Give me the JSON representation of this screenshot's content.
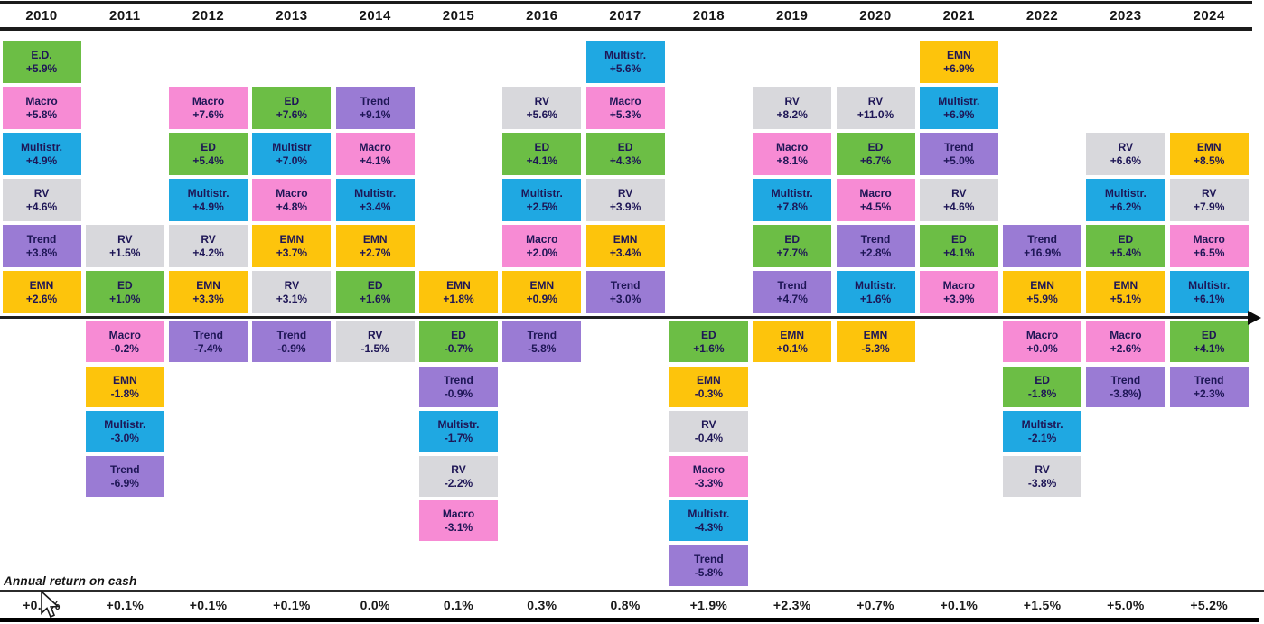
{
  "footer": {
    "cash_label": "Annual return on cash"
  },
  "colors": {
    "ED": "#6cbe45",
    "Macro": "#f78bd4",
    "Multistr": "#1fa8e2",
    "RV": "#d8d8dc",
    "Trend": "#9a7bd4",
    "EMN": "#fdc40c",
    "box_text": "#1e1656",
    "axis": "#1f1f1f"
  },
  "chart_data": {
    "type": "table",
    "title": "",
    "xlabel": "",
    "ylabel": "",
    "legend": "none",
    "years": [
      "2010",
      "2011",
      "2012",
      "2013",
      "2014",
      "2015",
      "2016",
      "2017",
      "2018",
      "2019",
      "2020",
      "2021",
      "2022",
      "2023",
      "2024"
    ],
    "cash_returns": [
      "+0.1%",
      "+0.1%",
      "+0.1%",
      "+0.1%",
      "0.0%",
      "0.1%",
      "0.3%",
      "0.8%",
      "+1.9%",
      "+2.3%",
      "+0.7%",
      "+0.1%",
      "+1.5%",
      "+5.0%",
      "+5.2%"
    ],
    "columns": [
      {
        "year": "2010",
        "cash": "+0.1%",
        "boxes": [
          {
            "row": 1,
            "label": "E.D.",
            "value": "+5.9%",
            "strategy": "ED"
          },
          {
            "row": 2,
            "label": "Macro",
            "value": "+5.8%",
            "strategy": "Macro"
          },
          {
            "row": 3,
            "label": "Multistr.",
            "value": "+4.9%",
            "strategy": "Multistr"
          },
          {
            "row": 4,
            "label": "RV",
            "value": "+4.6%",
            "strategy": "RV"
          },
          {
            "row": 5,
            "label": "Trend",
            "value": "+3.8%",
            "strategy": "Trend"
          },
          {
            "row": 6,
            "label": "EMN",
            "value": "+2.6%",
            "strategy": "EMN"
          }
        ]
      },
      {
        "year": "2011",
        "cash": "+0.1%",
        "boxes": [
          {
            "row": 5,
            "label": "RV",
            "value": "+1.5%",
            "strategy": "RV"
          },
          {
            "row": 6,
            "label": "ED",
            "value": "+1.0%",
            "strategy": "ED"
          },
          {
            "row": 7,
            "label": "Macro",
            "value": "-0.2%",
            "strategy": "Macro"
          },
          {
            "row": 8,
            "label": "EMN",
            "value": "-1.8%",
            "strategy": "EMN"
          },
          {
            "row": 9,
            "label": "Multistr.",
            "value": "-3.0%",
            "strategy": "Multistr"
          },
          {
            "row": 10,
            "label": "Trend",
            "value": "-6.9%",
            "strategy": "Trend"
          }
        ]
      },
      {
        "year": "2012",
        "cash": "+0.1%",
        "boxes": [
          {
            "row": 2,
            "label": "Macro",
            "value": "+7.6%",
            "strategy": "Macro"
          },
          {
            "row": 3,
            "label": "ED",
            "value": "+5.4%",
            "strategy": "ED"
          },
          {
            "row": 4,
            "label": "Multistr.",
            "value": "+4.9%",
            "strategy": "Multistr"
          },
          {
            "row": 5,
            "label": "RV",
            "value": "+4.2%",
            "strategy": "RV"
          },
          {
            "row": 6,
            "label": "EMN",
            "value": "+3.3%",
            "strategy": "EMN"
          },
          {
            "row": 7,
            "label": "Trend",
            "value": "-7.4%",
            "strategy": "Trend"
          }
        ]
      },
      {
        "year": "2013",
        "cash": "+0.1%",
        "boxes": [
          {
            "row": 2,
            "label": "ED",
            "value": "+7.6%",
            "strategy": "ED"
          },
          {
            "row": 3,
            "label": "Multistr",
            "value": "+7.0%",
            "strategy": "Multistr"
          },
          {
            "row": 4,
            "label": "Macro",
            "value": "+4.8%",
            "strategy": "Macro"
          },
          {
            "row": 5,
            "label": "EMN",
            "value": "+3.7%",
            "strategy": "EMN"
          },
          {
            "row": 6,
            "label": "RV",
            "value": "+3.1%",
            "strategy": "RV"
          },
          {
            "row": 7,
            "label": "Trend",
            "value": "-0.9%",
            "strategy": "Trend"
          }
        ]
      },
      {
        "year": "2014",
        "cash": "0.0%",
        "boxes": [
          {
            "row": 2,
            "label": "Trend",
            "value": "+9.1%",
            "strategy": "Trend"
          },
          {
            "row": 3,
            "label": "Macro",
            "value": "+4.1%",
            "strategy": "Macro"
          },
          {
            "row": 4,
            "label": "Multistr.",
            "value": "+3.4%",
            "strategy": "Multistr"
          },
          {
            "row": 5,
            "label": "EMN",
            "value": "+2.7%",
            "strategy": "EMN"
          },
          {
            "row": 6,
            "label": "ED",
            "value": "+1.6%",
            "strategy": "ED"
          },
          {
            "row": 7,
            "label": "RV",
            "value": "-1.5%",
            "strategy": "RV"
          }
        ]
      },
      {
        "year": "2015",
        "cash": "0.1%",
        "boxes": [
          {
            "row": 6,
            "label": "EMN",
            "value": "+1.8%",
            "strategy": "EMN"
          },
          {
            "row": 7,
            "label": "ED",
            "value": "-0.7%",
            "strategy": "ED"
          },
          {
            "row": 8,
            "label": "Trend",
            "value": "-0.9%",
            "strategy": "Trend"
          },
          {
            "row": 9,
            "label": "Multistr.",
            "value": "-1.7%",
            "strategy": "Multistr"
          },
          {
            "row": 10,
            "label": "RV",
            "value": "-2.2%",
            "strategy": "RV"
          },
          {
            "row": 11,
            "label": "Macro",
            "value": "-3.1%",
            "strategy": "Macro"
          }
        ]
      },
      {
        "year": "2016",
        "cash": "0.3%",
        "boxes": [
          {
            "row": 2,
            "label": "RV",
            "value": "+5.6%",
            "strategy": "RV"
          },
          {
            "row": 3,
            "label": "ED",
            "value": "+4.1%",
            "strategy": "ED"
          },
          {
            "row": 4,
            "label": "Multistr.",
            "value": "+2.5%",
            "strategy": "Multistr"
          },
          {
            "row": 5,
            "label": "Macro",
            "value": "+2.0%",
            "strategy": "Macro"
          },
          {
            "row": 6,
            "label": "EMN",
            "value": "+0.9%",
            "strategy": "EMN"
          },
          {
            "row": 7,
            "label": "Trend",
            "value": "-5.8%",
            "strategy": "Trend"
          }
        ]
      },
      {
        "year": "2017",
        "cash": "0.8%",
        "boxes": [
          {
            "row": 1,
            "label": "Multistr.",
            "value": "+5.6%",
            "strategy": "Multistr"
          },
          {
            "row": 2,
            "label": "Macro",
            "value": "+5.3%",
            "strategy": "Macro"
          },
          {
            "row": 3,
            "label": "ED",
            "value": "+4.3%",
            "strategy": "ED"
          },
          {
            "row": 4,
            "label": "RV",
            "value": "+3.9%",
            "strategy": "RV"
          },
          {
            "row": 5,
            "label": "EMN",
            "value": "+3.4%",
            "strategy": "EMN"
          },
          {
            "row": 6,
            "label": "Trend",
            "value": "+3.0%",
            "strategy": "Trend"
          }
        ]
      },
      {
        "year": "2018",
        "cash": "+1.9%",
        "boxes": [
          {
            "row": 7,
            "label": "ED",
            "value": "+1.6%",
            "strategy": "ED"
          },
          {
            "row": 8,
            "label": "EMN",
            "value": "-0.3%",
            "strategy": "EMN"
          },
          {
            "row": 9,
            "label": "RV",
            "value": "-0.4%",
            "strategy": "RV"
          },
          {
            "row": 10,
            "label": "Macro",
            "value": "-3.3%",
            "strategy": "Macro"
          },
          {
            "row": 11,
            "label": "Multistr.",
            "value": "-4.3%",
            "strategy": "Multistr"
          },
          {
            "row": 12,
            "label": "Trend",
            "value": "-5.8%",
            "strategy": "Trend"
          }
        ]
      },
      {
        "year": "2019",
        "cash": "+2.3%",
        "boxes": [
          {
            "row": 2,
            "label": "RV",
            "value": "+8.2%",
            "strategy": "RV"
          },
          {
            "row": 3,
            "label": "Macro",
            "value": "+8.1%",
            "strategy": "Macro"
          },
          {
            "row": 4,
            "label": "Multistr.",
            "value": "+7.8%",
            "strategy": "Multistr"
          },
          {
            "row": 5,
            "label": "ED",
            "value": "+7.7%",
            "strategy": "ED"
          },
          {
            "row": 6,
            "label": "Trend",
            "value": "+4.7%",
            "strategy": "Trend"
          },
          {
            "row": 7,
            "label": "EMN",
            "value": "+0.1%",
            "strategy": "EMN"
          }
        ]
      },
      {
        "year": "2020",
        "cash": "+0.7%",
        "boxes": [
          {
            "row": 2,
            "label": "RV",
            "value": "+11.0%",
            "strategy": "RV"
          },
          {
            "row": 3,
            "label": "ED",
            "value": "+6.7%",
            "strategy": "ED"
          },
          {
            "row": 4,
            "label": "Macro",
            "value": "+4.5%",
            "strategy": "Macro"
          },
          {
            "row": 5,
            "label": "Trend",
            "value": "+2.8%",
            "strategy": "Trend"
          },
          {
            "row": 6,
            "label": "Multistr.",
            "value": "+1.6%",
            "strategy": "Multistr"
          },
          {
            "row": 7,
            "label": "EMN",
            "value": "-5.3%",
            "strategy": "EMN"
          }
        ]
      },
      {
        "year": "2021",
        "cash": "+0.1%",
        "boxes": [
          {
            "row": 1,
            "label": "EMN",
            "value": "+6.9%",
            "strategy": "EMN"
          },
          {
            "row": 2,
            "label": "Multistr.",
            "value": "+6.9%",
            "strategy": "Multistr"
          },
          {
            "row": 3,
            "label": "Trend",
            "value": "+5.0%",
            "strategy": "Trend"
          },
          {
            "row": 4,
            "label": "RV",
            "value": "+4.6%",
            "strategy": "RV"
          },
          {
            "row": 5,
            "label": "ED",
            "value": "+4.1%",
            "strategy": "ED"
          },
          {
            "row": 6,
            "label": "Macro",
            "value": "+3.9%",
            "strategy": "Macro"
          }
        ]
      },
      {
        "year": "2022",
        "cash": "+1.5%",
        "boxes": [
          {
            "row": 5,
            "label": "Trend",
            "value": "+16.9%",
            "strategy": "Trend"
          },
          {
            "row": 6,
            "label": "EMN",
            "value": "+5.9%",
            "strategy": "EMN"
          },
          {
            "row": 7,
            "label": "Macro",
            "value": "+0.0%",
            "strategy": "Macro"
          },
          {
            "row": 8,
            "label": "ED",
            "value": "-1.8%",
            "strategy": "ED"
          },
          {
            "row": 9,
            "label": "Multistr.",
            "value": "-2.1%",
            "strategy": "Multistr"
          },
          {
            "row": 10,
            "label": "RV",
            "value": "-3.8%",
            "strategy": "RV"
          }
        ]
      },
      {
        "year": "2023",
        "cash": "+5.0%",
        "boxes": [
          {
            "row": 3,
            "label": "RV",
            "value": "+6.6%",
            "strategy": "RV"
          },
          {
            "row": 4,
            "label": "Multistr.",
            "value": "+6.2%",
            "strategy": "Multistr"
          },
          {
            "row": 5,
            "label": "ED",
            "value": "+5.4%",
            "strategy": "ED"
          },
          {
            "row": 6,
            "label": "EMN",
            "value": "+5.1%",
            "strategy": "EMN"
          },
          {
            "row": 7,
            "label": "Macro",
            "value": "+2.6%",
            "strategy": "Macro"
          },
          {
            "row": 8,
            "label": "Trend",
            "value": "-3.8%)",
            "strategy": "Trend"
          }
        ]
      },
      {
        "year": "2024",
        "cash": "+5.2%",
        "boxes": [
          {
            "row": 3,
            "label": "EMN",
            "value": "+8.5%",
            "strategy": "EMN"
          },
          {
            "row": 4,
            "label": "RV",
            "value": "+7.9%",
            "strategy": "RV"
          },
          {
            "row": 5,
            "label": "Macro",
            "value": "+6.5%",
            "strategy": "Macro"
          },
          {
            "row": 6,
            "label": "Multistr.",
            "value": "+6.1%",
            "strategy": "Multistr"
          },
          {
            "row": 7,
            "label": "ED",
            "value": "+4.1%",
            "strategy": "ED"
          },
          {
            "row": 8,
            "label": "Trend",
            "value": "+2.3%",
            "strategy": "Trend"
          }
        ]
      }
    ]
  }
}
